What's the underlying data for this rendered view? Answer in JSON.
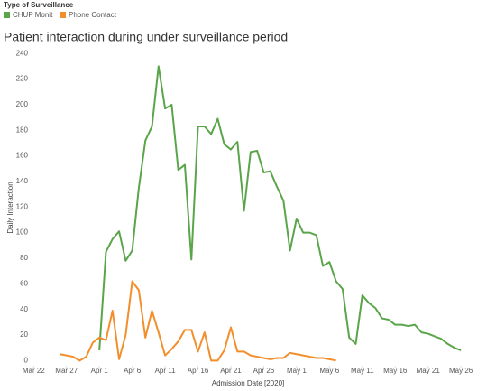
{
  "chart_data": {
    "type": "line",
    "title": "Patient interaction during under surveillance period",
    "legend_title": "Type of Surveillance",
    "legend": "top-left",
    "xlabel": "Admission Date [2020]",
    "ylabel": "Daily Interaction",
    "grid": false,
    "x": [
      "2020-03-26",
      "2020-03-27",
      "2020-03-28",
      "2020-03-29",
      "2020-03-30",
      "2020-03-31",
      "2020-04-01",
      "2020-04-02",
      "2020-04-03",
      "2020-04-04",
      "2020-04-05",
      "2020-04-06",
      "2020-04-07",
      "2020-04-08",
      "2020-04-09",
      "2020-04-10",
      "2020-04-11",
      "2020-04-12",
      "2020-04-13",
      "2020-04-14",
      "2020-04-15",
      "2020-04-16",
      "2020-04-17",
      "2020-04-18",
      "2020-04-19",
      "2020-04-20",
      "2020-04-21",
      "2020-04-22",
      "2020-04-23",
      "2020-04-24",
      "2020-04-25",
      "2020-04-26",
      "2020-04-27",
      "2020-04-28",
      "2020-04-29",
      "2020-04-30",
      "2020-05-01",
      "2020-05-02",
      "2020-05-03",
      "2020-05-04",
      "2020-05-05",
      "2020-05-06",
      "2020-05-07",
      "2020-05-08",
      "2020-05-09",
      "2020-05-10",
      "2020-05-11",
      "2020-05-12",
      "2020-05-13",
      "2020-05-14",
      "2020-05-15",
      "2020-05-16",
      "2020-05-17",
      "2020-05-18",
      "2020-05-19",
      "2020-05-20",
      "2020-05-21",
      "2020-05-22",
      "2020-05-23",
      "2020-05-24",
      "2020-05-25",
      "2020-05-26"
    ],
    "series": [
      {
        "name": "CHUP Monit",
        "color": "#5aa54a",
        "values": [
          null,
          null,
          null,
          null,
          null,
          null,
          8,
          85,
          95,
          101,
          78,
          86,
          135,
          172,
          183,
          230,
          197,
          200,
          149,
          153,
          79,
          183,
          183,
          177,
          189,
          169,
          165,
          171,
          117,
          163,
          164,
          147,
          148,
          136,
          125,
          86,
          111,
          100,
          100,
          98,
          74,
          77,
          62,
          56,
          18,
          13,
          51,
          45,
          41,
          33,
          32,
          28,
          28,
          27,
          28,
          22,
          21,
          19,
          17,
          13,
          10,
          8
        ]
      },
      {
        "name": "Phone Contact",
        "color": "#f28e2b",
        "values": [
          5,
          4,
          3,
          0,
          3,
          14,
          18,
          16,
          39,
          1,
          20,
          62,
          55,
          18,
          39,
          22,
          4,
          9,
          15,
          24,
          24,
          7,
          22,
          0,
          0,
          8,
          26,
          7,
          7,
          4,
          3,
          2,
          1,
          2,
          2,
          6,
          5,
          4,
          3,
          2,
          2,
          1,
          0,
          null,
          null,
          null,
          null,
          null,
          null,
          null,
          null,
          null,
          null,
          null,
          null,
          null,
          null,
          null,
          null,
          null,
          null,
          null
        ]
      }
    ],
    "xlim": [
      "2020-03-21",
      "2020-05-29"
    ],
    "xticks": [
      {
        "value": "2020-03-22",
        "label": "Mar 22"
      },
      {
        "value": "2020-03-27",
        "label": "Mar 27"
      },
      {
        "value": "2020-04-01",
        "label": "Apr 1"
      },
      {
        "value": "2020-04-06",
        "label": "Apr 6"
      },
      {
        "value": "2020-04-11",
        "label": "Apr 11"
      },
      {
        "value": "2020-04-16",
        "label": "Apr 16"
      },
      {
        "value": "2020-04-21",
        "label": "Apr 21"
      },
      {
        "value": "2020-04-26",
        "label": "Apr 26"
      },
      {
        "value": "2020-05-01",
        "label": "May 1"
      },
      {
        "value": "2020-05-06",
        "label": "May 6"
      },
      {
        "value": "2020-05-11",
        "label": "May 11"
      },
      {
        "value": "2020-05-16",
        "label": "May 16"
      },
      {
        "value": "2020-05-21",
        "label": "May 21"
      },
      {
        "value": "2020-05-26",
        "label": "May 26"
      }
    ],
    "ylim": [
      -4,
      243
    ],
    "yticks": [
      0,
      20,
      40,
      60,
      80,
      100,
      120,
      140,
      160,
      180,
      200,
      220,
      240
    ]
  }
}
